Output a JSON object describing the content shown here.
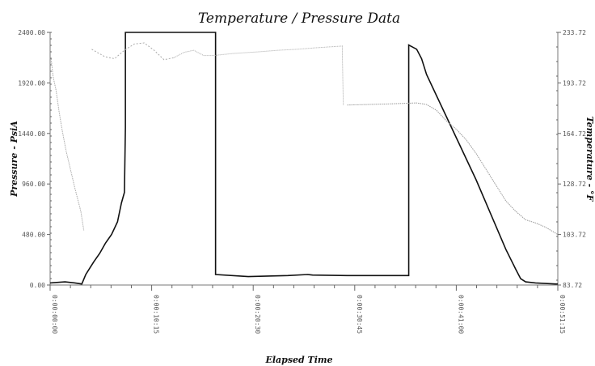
{
  "chart_data": {
    "type": "line",
    "title": "Temperature / Pressure Data",
    "xlabel": "Elapsed Time",
    "ylabel": "Pressure - PsiA",
    "y2label": "Temperature - °F",
    "ylim": [
      0,
      2400
    ],
    "y_ticks": [
      "0.00",
      "480.00",
      "960.00",
      "1440.00",
      "1920.00",
      "2400.00"
    ],
    "y2_ticks": [
      "83.72",
      "103.72",
      "128.72",
      "164.72",
      "193.72",
      "233.72"
    ],
    "x_ticks": [
      "0:00:00:00",
      "0:00:10:15",
      "0:00:20:30",
      "0:00:30:45",
      "0:00:41:00",
      "0:00:51:15"
    ],
    "grid": false,
    "legend": "none",
    "series": [
      {
        "axis": "left",
        "color": "#111111",
        "x": [
          0,
          1.5,
          2.5,
          3.2,
          3.6,
          4.0,
          4.4,
          5.0,
          5.6,
          6.2,
          6.8,
          7.2,
          7.5,
          7.6,
          7.6,
          16.7,
          16.7,
          20,
          24,
          26,
          26.5,
          30,
          34,
          36.2,
          36.2,
          37.0,
          37.5,
          38,
          39,
          40,
          41,
          42,
          43,
          44,
          45,
          46,
          47,
          47.5,
          48,
          49,
          50,
          51,
          51.25
        ],
        "values": [
          20,
          30,
          20,
          10,
          100,
          160,
          220,
          300,
          400,
          480,
          600,
          780,
          880,
          1500,
          2400,
          2400,
          100,
          80,
          90,
          100,
          95,
          90,
          90,
          90,
          2280,
          2240,
          2150,
          2000,
          1800,
          1600,
          1400,
          1200,
          1000,
          780,
          560,
          340,
          150,
          60,
          30,
          20,
          15,
          10,
          10
        ]
      },
      {
        "axis": "left",
        "color": "#aaaaaa",
        "x": [
          0.1,
          0.3,
          0.6,
          0.9,
          1.2,
          1.6,
          2.0,
          2.5,
          3.1,
          3.4
        ],
        "values": [
          2150,
          1980,
          1850,
          1650,
          1480,
          1280,
          1120,
          920,
          700,
          520
        ]
      },
      {
        "axis": "left",
        "color": "#aaaaaa",
        "x": [
          4.2,
          5.5,
          6.5,
          7.5,
          8.5,
          9.5,
          10.5,
          11.5,
          12.5,
          13.5,
          14.5,
          15.5,
          16.5,
          18.5,
          21,
          23,
          25,
          27,
          29.5,
          29.5,
          29.6
        ],
        "values": [
          2240,
          2170,
          2150,
          2230,
          2290,
          2300,
          2230,
          2140,
          2160,
          2210,
          2230,
          2180,
          2180,
          2200,
          2215,
          2230,
          2240,
          2255,
          2270,
          2180,
          1710
        ],
        "dashed_until_index": 8
      },
      {
        "axis": "left",
        "color": "#999999",
        "x": [
          30,
          34,
          37,
          38,
          39,
          40,
          41,
          42,
          43,
          44,
          45,
          46,
          47,
          48,
          49,
          50,
          51.25
        ],
        "values": [
          1710,
          1720,
          1730,
          1715,
          1660,
          1560,
          1480,
          1380,
          1250,
          1100,
          950,
          800,
          700,
          620,
          590,
          550,
          480
        ]
      }
    ]
  }
}
